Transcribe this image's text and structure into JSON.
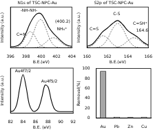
{
  "chart_data": [
    {
      "type": "line",
      "title": "N1s of TSC-NPC-Au",
      "x_label": "B.E.(eV)",
      "y_label": "Intensity (a.u.)",
      "x": [
        396,
        396.5,
        397,
        397.5,
        398,
        398.5,
        399,
        399.5,
        400,
        400.5,
        401,
        401.5,
        402,
        402.5,
        403,
        403.5,
        404
      ],
      "series": [
        {
          "color": "#000000",
          "line_style": "solid",
          "values": [
            3,
            3.4,
            6,
            15.4,
            34.9,
            57.8,
            74.6,
            83.9,
            83,
            68.7,
            50.3,
            37.3,
            27.8,
            18.6,
            10.5,
            5.7,
            3.7
          ]
        },
        {
          "color": "#444444",
          "line_style": "dashed",
          "values": [
            0,
            0.4,
            2.9,
            11.6,
            27.7,
            39.6,
            34,
            17.5,
            5.4,
            1,
            0.1,
            0,
            0,
            0,
            0,
            0,
            0
          ]
        },
        {
          "color": "#444444",
          "line_style": "dashed",
          "values": [
            0,
            0,
            0.1,
            0.8,
            4.2,
            15.1,
            37.2,
            61.8,
            69.5,
            52.9,
            27.2,
            9.5,
            2.2,
            0.4,
            0,
            0,
            0
          ]
        },
        {
          "color": "#444444",
          "line_style": "dashed",
          "values": [
            0,
            0,
            0,
            0,
            0,
            0.1,
            0.4,
            1.6,
            5.1,
            11.8,
            20,
            24.8,
            22.6,
            15.2,
            7.5,
            2.7,
            0.7
          ]
        }
      ],
      "annotations": [
        {
          "text": "C=N",
          "x": 397.4,
          "y": 32
        },
        {
          "text": "-NH-NH-",
          "x": 398.4,
          "y": 92
        },
        {
          "text": "NH₄⁺",
          "x": 402.7,
          "y": 46
        },
        {
          "text": "(400.2)",
          "x": 402.8,
          "y": 64
        }
      ],
      "xlim": [
        396,
        404
      ],
      "xticks": [
        396,
        398,
        400,
        402,
        404
      ],
      "ylim": [
        0,
        100
      ],
      "tick_labels": "x",
      "grid": false
    },
    {
      "type": "line",
      "title": "S2p of TSC-NPC-Au",
      "x_label": "B.E.(eV)",
      "y_label": "Intensity (a.u.)",
      "x": [
        160,
        160.5,
        161,
        161.5,
        162,
        162.5,
        163,
        163.5,
        164,
        164.5,
        165,
        165.5,
        166
      ],
      "series": [
        {
          "color": "#000000",
          "line_style": "solid",
          "values": [
            3.9,
            8.7,
            22.2,
            38.6,
            48.6,
            59.5,
            66.8,
            57,
            41.9,
            33.7,
            25.2,
            14,
            6.4
          ]
        },
        {
          "color": "#444444",
          "line_style": "dashed",
          "values": [
            0.9,
            5.6,
            18.2,
            29.6,
            24,
            9.7,
            2,
            0.2,
            0,
            0,
            0,
            0,
            0
          ]
        },
        {
          "color": "#444444",
          "line_style": "dashed",
          "values": [
            0,
            0.1,
            1,
            6,
            21.6,
            46.5,
            60,
            46.5,
            21.6,
            6,
            1,
            0.1,
            0
          ]
        },
        {
          "color": "#444444",
          "line_style": "dashed",
          "values": [
            0,
            0,
            0,
            0,
            0,
            0.3,
            1.8,
            7.3,
            17.3,
            24.7,
            21.2,
            10.9,
            3.4
          ]
        }
      ],
      "annotations": [
        {
          "text": "C=S",
          "x": 160.7,
          "y": 46
        },
        {
          "text": "C-S",
          "x": 162.9,
          "y": 82
        },
        {
          "text": "C=SH⁺",
          "x": 165.2,
          "y": 60
        },
        {
          "text": "164.6",
          "x": 165.4,
          "y": 42
        }
      ],
      "xlim": [
        160,
        166
      ],
      "xticks": [
        160,
        162,
        164,
        166
      ],
      "ylim": [
        0,
        100
      ],
      "tick_labels": "x",
      "grid": false
    },
    {
      "type": "line",
      "x_label": "B.E. (eV)",
      "y_label": "Intensity (a.u.)",
      "x": [
        82,
        82.5,
        83,
        83.5,
        84,
        84.5,
        85,
        85.5,
        86,
        86.5,
        87,
        87.5,
        88,
        88.5,
        89,
        89.5,
        90,
        90.5,
        91,
        91.5,
        92
      ],
      "series": [
        {
          "color": "#000000",
          "line_style": "solid",
          "values": [
            4.1,
            6.2,
            21.3,
            63.6,
            94,
            63.6,
            21.3,
            6.3,
            5.3,
            13.2,
            38.4,
            68.3,
            64,
            32,
            10.5,
            4.8,
            4,
            4,
            4,
            4,
            4
          ]
        }
      ],
      "annotations": [
        {
          "text": "Au4f7/2",
          "x": 84,
          "y": 103
        },
        {
          "text": "Au4f5/2",
          "x": 88.2,
          "y": 78
        }
      ],
      "xlim": [
        82,
        92
      ],
      "xticks": [
        82,
        84,
        86,
        88,
        90,
        92
      ],
      "ylim": [
        0,
        110
      ],
      "tick_labels": "x",
      "grid": false
    },
    {
      "type": "bar",
      "y_label": "Removal(%)",
      "categories": [
        "Au",
        "Pb",
        "Zn",
        "Cu"
      ],
      "values": [
        95,
        3,
        2,
        3
      ],
      "color": "#a6a6a6",
      "ylim": [
        0,
        100
      ],
      "yticks": [
        0,
        20,
        40,
        60,
        80,
        100
      ],
      "grid": false
    }
  ]
}
